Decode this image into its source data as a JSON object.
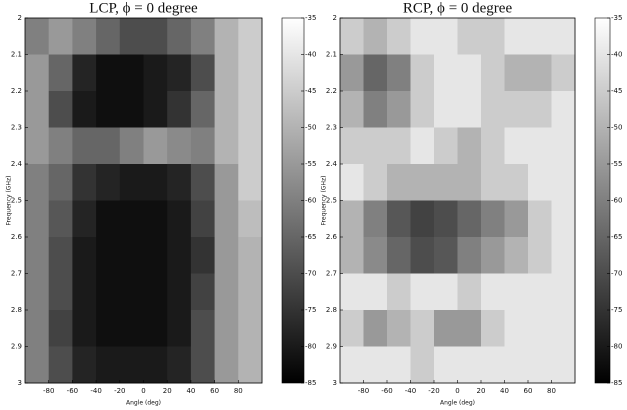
{
  "chart_data": [
    {
      "type": "heatmap",
      "title": "LCP, ϕ  = 0 degree",
      "x_label": "Angle (deg)",
      "y_label": "Frequency (GHz)",
      "x": [
        -90,
        -70,
        -50,
        -30,
        -10,
        10,
        30,
        50,
        70,
        90
      ],
      "y": [
        2.05,
        2.15,
        2.25,
        2.35,
        2.45,
        2.55,
        2.65,
        2.75,
        2.85,
        2.95
      ],
      "values": [
        [
          -60,
          -55,
          -60,
          -65,
          -70,
          -70,
          -65,
          -60,
          -50,
          -45
        ],
        [
          -55,
          -65,
          -78,
          -82,
          -82,
          -80,
          -78,
          -70,
          -50,
          -45
        ],
        [
          -55,
          -70,
          -80,
          -82,
          -82,
          -80,
          -75,
          -65,
          -50,
          -45
        ],
        [
          -55,
          -60,
          -65,
          -65,
          -60,
          -55,
          -58,
          -60,
          -50,
          -45
        ],
        [
          -60,
          -65,
          -75,
          -78,
          -80,
          -80,
          -78,
          -70,
          -55,
          -45
        ],
        [
          -60,
          -68,
          -78,
          -82,
          -82,
          -82,
          -80,
          -72,
          -55,
          -48
        ],
        [
          -60,
          -70,
          -80,
          -82,
          -82,
          -82,
          -80,
          -75,
          -55,
          -50
        ],
        [
          -60,
          -70,
          -80,
          -82,
          -82,
          -82,
          -80,
          -72,
          -55,
          -50
        ],
        [
          -60,
          -72,
          -80,
          -82,
          -82,
          -82,
          -80,
          -70,
          -55,
          -50
        ],
        [
          -60,
          -70,
          -78,
          -80,
          -80,
          -80,
          -78,
          -70,
          -55,
          -50
        ]
      ],
      "xlim": [
        -100,
        100
      ],
      "xticks": [
        -80,
        -60,
        -40,
        -20,
        0,
        20,
        40,
        60,
        80
      ],
      "ylim": [
        2,
        3
      ],
      "yticks": [
        2,
        2.1,
        2.2,
        2.3,
        2.4,
        2.5,
        2.6,
        2.7,
        2.8,
        2.9,
        3
      ],
      "y_inverted": true,
      "colormap": "gray",
      "clim": [
        -85,
        -35
      ],
      "cticks": [
        -35,
        -40,
        -45,
        -50,
        -55,
        -60,
        -65,
        -70,
        -75,
        -80,
        -85
      ]
    },
    {
      "type": "heatmap",
      "title": "RCP, ϕ   = 0 degree",
      "x_label": "Angle (deg)",
      "y_label": "Frequency (GHz)",
      "x": [
        -90,
        -70,
        -50,
        -30,
        -10,
        10,
        30,
        50,
        70,
        90
      ],
      "y": [
        2.05,
        2.15,
        2.25,
        2.35,
        2.45,
        2.55,
        2.65,
        2.75,
        2.85,
        2.95
      ],
      "values": [
        [
          -45,
          -50,
          -45,
          -40,
          -40,
          -45,
          -45,
          -40,
          -40,
          -40
        ],
        [
          -55,
          -65,
          -60,
          -45,
          -40,
          -40,
          -45,
          -50,
          -50,
          -45
        ],
        [
          -50,
          -60,
          -55,
          -45,
          -40,
          -40,
          -45,
          -45,
          -45,
          -40
        ],
        [
          -45,
          -45,
          -45,
          -40,
          -45,
          -50,
          -45,
          -40,
          -40,
          -40
        ],
        [
          -40,
          -45,
          -50,
          -50,
          -50,
          -50,
          -45,
          -45,
          -40,
          -40
        ],
        [
          -50,
          -60,
          -68,
          -72,
          -70,
          -65,
          -60,
          -55,
          -45,
          -40
        ],
        [
          -50,
          -58,
          -65,
          -70,
          -68,
          -60,
          -55,
          -50,
          -45,
          -40
        ],
        [
          -40,
          -40,
          -45,
          -40,
          -40,
          -45,
          -40,
          -40,
          -40,
          -40
        ],
        [
          -45,
          -55,
          -50,
          -45,
          -55,
          -55,
          -45,
          -40,
          -40,
          -40
        ],
        [
          -40,
          -40,
          -40,
          -45,
          -40,
          -40,
          -40,
          -40,
          -40,
          -40
        ]
      ],
      "xlim": [
        -100,
        100
      ],
      "xticks": [
        -80,
        -60,
        -40,
        -20,
        0,
        20,
        40,
        60,
        80
      ],
      "ylim": [
        2,
        3
      ],
      "yticks": [
        2,
        2.1,
        2.2,
        2.3,
        2.4,
        2.5,
        2.6,
        2.7,
        2.8,
        2.9,
        3
      ],
      "y_inverted": true,
      "colormap": "gray",
      "clim": [
        -85,
        -35
      ],
      "cticks": [
        -35,
        -40,
        -45,
        -50,
        -55,
        -60,
        -65,
        -70,
        -75,
        -80,
        -85
      ]
    }
  ]
}
